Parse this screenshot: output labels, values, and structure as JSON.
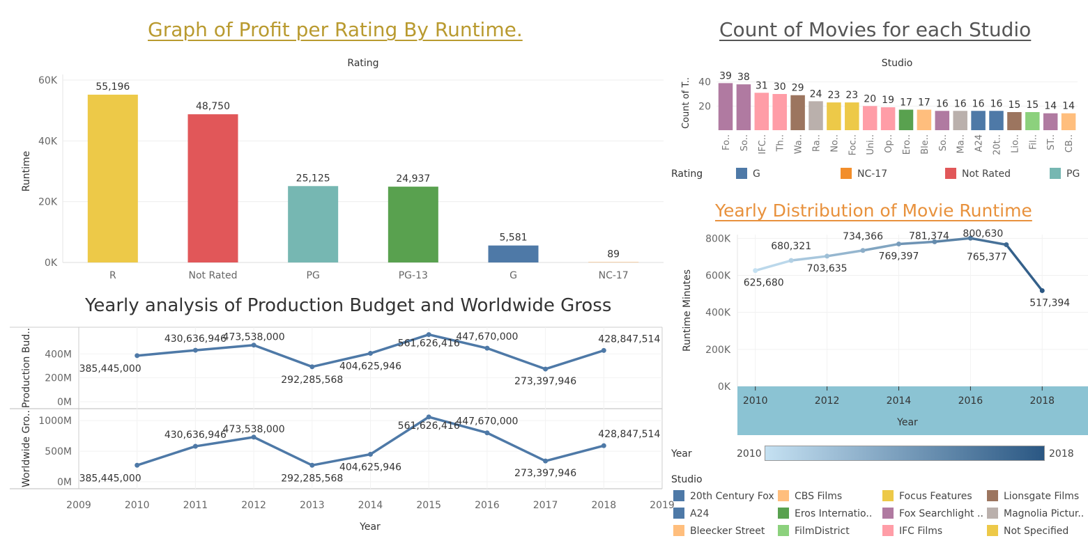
{
  "titles": {
    "profit_rating": "Graph of Profit per Rating By Runtime.",
    "studio_count": "Count of Movies for each Studio",
    "budget_gross": "Yearly analysis of Production Budget and Worldwide Gross",
    "runtime_dist": "Yearly Distribution of Movie Runtime"
  },
  "colors": {
    "title_gold": "#B99A2F",
    "title_gray": "#555555",
    "title_orange": "#E8913C",
    "line_blue": "#4E79A7",
    "year_band": "#8BC3D3"
  },
  "chart_data": [
    {
      "id": "profit_rating",
      "type": "bar",
      "header": "Rating",
      "ylabel": "Runtime",
      "categories": [
        "R",
        "Not Rated",
        "PG",
        "PG-13",
        "G",
        "NC-17"
      ],
      "values": [
        55196,
        48750,
        25125,
        24937,
        5581,
        89
      ],
      "value_labels": [
        "55,196",
        "48,750",
        "25,125",
        "24,937",
        "5,581",
        "89"
      ],
      "colors": [
        "#EDC948",
        "#E15759",
        "#76B7B2",
        "#59A14F",
        "#4E79A7",
        "#F28E2B"
      ],
      "ylim": [
        0,
        60000
      ],
      "yticks": [
        0,
        20000,
        40000,
        60000
      ],
      "ytick_labels": [
        "0K",
        "20K",
        "40K",
        "60K"
      ],
      "grid": true
    },
    {
      "id": "studio_count",
      "type": "bar",
      "header": "Studio",
      "ylabel": "Count of T..",
      "categories": [
        "Fo..",
        "So..",
        "IFC..",
        "Th..",
        "Wa..",
        "Ra..",
        "No..",
        "Foc..",
        "Uni..",
        "Op..",
        "Ero..",
        "Ble..",
        "So..",
        "Ma..",
        "A24",
        "20t..",
        "Lio..",
        "Fil..",
        "ST..",
        "CB.."
      ],
      "values": [
        39,
        38,
        31,
        30,
        29,
        24,
        23,
        23,
        20,
        19,
        17,
        17,
        16,
        16,
        16,
        16,
        15,
        15,
        14,
        14
      ],
      "colors": [
        "#B07AA1",
        "#B07AA1",
        "#FF9DA7",
        "#FF9DA7",
        "#9C755F",
        "#BAB0AC",
        "#EDC948",
        "#EDC948",
        "#FF9DA7",
        "#FF9DA7",
        "#59A14F",
        "#FFBE7D",
        "#B07AA1",
        "#BAB0AC",
        "#4E79A7",
        "#4E79A7",
        "#9C755F",
        "#8CD17D",
        "#B07AA1",
        "#FFBE7D"
      ],
      "ylim": [
        0,
        45
      ],
      "yticks": [
        20,
        40
      ],
      "ytick_labels": [
        "20",
        "40"
      ]
    },
    {
      "id": "budget_gross",
      "type": "line",
      "xlabel": "Year",
      "x": [
        2010,
        2011,
        2012,
        2013,
        2014,
        2015,
        2016,
        2017,
        2018
      ],
      "xticks": [
        2009,
        2010,
        2011,
        2012,
        2013,
        2014,
        2015,
        2016,
        2017,
        2018,
        2019
      ],
      "series": [
        {
          "name": "Production Bud..",
          "values": [
            385445000,
            430636946,
            473538000,
            292285568,
            404625946,
            561626416,
            447670000,
            273397946,
            428847514
          ],
          "ylim": [
            0,
            600000000
          ],
          "yticks": [
            0,
            200000000,
            400000000
          ],
          "ytick_labels": [
            "0M",
            "200M",
            "400M"
          ]
        },
        {
          "name": "Worldwide Gro..",
          "values": [
            270000000,
            580000000,
            730000000,
            270000000,
            450000000,
            1060000000,
            800000000,
            340000000,
            590000000
          ],
          "ylim": [
            0,
            1150000000
          ],
          "yticks": [
            0,
            500000000,
            1000000000
          ],
          "ytick_labels": [
            "0M",
            "500M",
            "1000M"
          ]
        }
      ],
      "value_labels": [
        "385,445,000",
        "430,636,946",
        "473,538,000",
        "292,285,568",
        "404,625,946",
        "561,626,416",
        "447,670,000",
        "273,397,946",
        "428,847,514"
      ]
    },
    {
      "id": "runtime_dist",
      "type": "line",
      "xlabel": "Year",
      "ylabel": "Runtime Minutes",
      "x": [
        2010,
        2011,
        2012,
        2013,
        2014,
        2015,
        2016,
        2017,
        2018
      ],
      "values": [
        625680,
        680321,
        703635,
        734366,
        769397,
        781374,
        800630,
        765377,
        517394
      ],
      "value_labels": [
        "625,680",
        "680,321",
        "703,635",
        "734,366",
        "769,397",
        "781,374",
        "800,630",
        "765,377",
        "517,394"
      ],
      "ylim": [
        0,
        820000
      ],
      "yticks": [
        0,
        200000,
        400000,
        600000,
        800000
      ],
      "ytick_labels": [
        "0K",
        "200K",
        "400K",
        "600K",
        "800K"
      ],
      "xticks": [
        2010,
        2012,
        2014,
        2016,
        2018
      ],
      "color_range": [
        "#C5E1F2",
        "#2A5783"
      ]
    }
  ],
  "rating_legend": {
    "title": "Rating",
    "items": [
      {
        "label": "G",
        "color": "#4E79A7"
      },
      {
        "label": "NC-17",
        "color": "#F28E2B"
      },
      {
        "label": "Not Rated",
        "color": "#E15759"
      },
      {
        "label": "PG",
        "color": "#76B7B2"
      }
    ]
  },
  "year_legend": {
    "title": "Year",
    "min_label": "2010",
    "max_label": "2018"
  },
  "studio_legend": {
    "title": "Studio",
    "items": [
      {
        "label": "20th Century Fox",
        "color": "#4E79A7"
      },
      {
        "label": "CBS Films",
        "color": "#FFBE7D"
      },
      {
        "label": "Focus Features",
        "color": "#EDC948"
      },
      {
        "label": "Lionsgate Films",
        "color": "#9C755F"
      },
      {
        "label": "A24",
        "color": "#4E79A7"
      },
      {
        "label": "Eros Internatio..",
        "color": "#59A14F"
      },
      {
        "label": "Fox Searchlight ..",
        "color": "#B07AA1"
      },
      {
        "label": "Magnolia Pictur..",
        "color": "#BAB0AC"
      },
      {
        "label": "Bleecker Street",
        "color": "#FFBE7D"
      },
      {
        "label": "FilmDistrict",
        "color": "#8CD17D"
      },
      {
        "label": "IFC Films",
        "color": "#FF9DA7"
      },
      {
        "label": "Not Specified",
        "color": "#EDC948"
      }
    ]
  }
}
